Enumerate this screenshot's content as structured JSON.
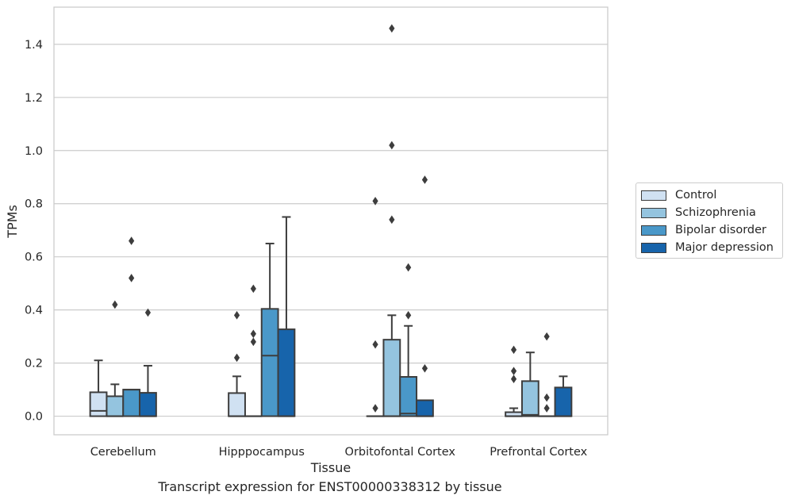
{
  "chart_data": {
    "type": "box",
    "caption": "Transcript expression for ENST00000338312 by tissue",
    "xlabel": "Tissue",
    "ylabel": "TPMs",
    "ylim": [
      -0.07,
      1.54
    ],
    "yticks": [
      0.0,
      0.2,
      0.4,
      0.6,
      0.8,
      1.0,
      1.2,
      1.4
    ],
    "ytick_labels": [
      "0.0",
      "0.2",
      "0.4",
      "0.6",
      "0.8",
      "1.0",
      "1.2",
      "1.4"
    ],
    "grid": "horizontal",
    "legend_position": "right",
    "categories": [
      "Cerebellum",
      "Hipppocampus",
      "Orbitofontal Cortex",
      "Prefrontal Cortex"
    ],
    "series": [
      {
        "name": "Control",
        "color": "#d0e1f2",
        "boxes": [
          {
            "q1": 0.0,
            "median": 0.02,
            "q3": 0.09,
            "whisker_low": 0.0,
            "whisker_high": 0.21,
            "outliers": []
          },
          {
            "q1": 0.0,
            "median": 0.0,
            "q3": 0.087,
            "whisker_low": 0.0,
            "whisker_high": 0.15,
            "outliers": [
              0.22,
              0.38
            ]
          },
          {
            "q1": 0.0,
            "median": 0.0,
            "q3": 0.0,
            "whisker_low": 0.0,
            "whisker_high": 0.0,
            "outliers": [
              0.03,
              0.27,
              0.81
            ]
          },
          {
            "q1": 0.0,
            "median": 0.0,
            "q3": 0.015,
            "whisker_low": 0.0,
            "whisker_high": 0.03,
            "outliers": [
              0.14,
              0.17,
              0.25
            ]
          }
        ]
      },
      {
        "name": "Schizophrenia",
        "color": "#94c4df",
        "boxes": [
          {
            "q1": 0.0,
            "median": 0.0,
            "q3": 0.075,
            "whisker_low": 0.0,
            "whisker_high": 0.12,
            "outliers": [
              0.42
            ]
          },
          {
            "q1": 0.0,
            "median": 0.0,
            "q3": 0.0,
            "whisker_low": 0.0,
            "whisker_high": 0.0,
            "outliers": [
              0.28,
              0.31,
              0.48
            ]
          },
          {
            "q1": 0.0,
            "median": 0.0,
            "q3": 0.288,
            "whisker_low": 0.0,
            "whisker_high": 0.38,
            "outliers": [
              0.74,
              1.02,
              1.46
            ]
          },
          {
            "q1": 0.0,
            "median": 0.005,
            "q3": 0.132,
            "whisker_low": 0.0,
            "whisker_high": 0.24,
            "outliers": []
          }
        ]
      },
      {
        "name": "Bipolar disorder",
        "color": "#4a98c9",
        "boxes": [
          {
            "q1": 0.0,
            "median": 0.1,
            "q3": 0.1,
            "whisker_low": 0.0,
            "whisker_high": 0.1,
            "outliers": [
              0.52,
              0.66
            ]
          },
          {
            "q1": 0.0,
            "median": 0.228,
            "q3": 0.404,
            "whisker_low": 0.0,
            "whisker_high": 0.65,
            "outliers": []
          },
          {
            "q1": 0.0,
            "median": 0.01,
            "q3": 0.148,
            "whisker_low": 0.0,
            "whisker_high": 0.34,
            "outliers": [
              0.38,
              0.56
            ]
          },
          {
            "q1": 0.0,
            "median": 0.0,
            "q3": 0.0,
            "whisker_low": 0.0,
            "whisker_high": 0.0,
            "outliers": [
              0.03,
              0.07,
              0.3
            ]
          }
        ]
      },
      {
        "name": "Major depression",
        "color": "#1764ab",
        "boxes": [
          {
            "q1": 0.0,
            "median": 0.0,
            "q3": 0.088,
            "whisker_low": 0.0,
            "whisker_high": 0.19,
            "outliers": [
              0.39
            ]
          },
          {
            "q1": 0.0,
            "median": 0.0,
            "q3": 0.327,
            "whisker_low": 0.0,
            "whisker_high": 0.75,
            "outliers": []
          },
          {
            "q1": 0.0,
            "median": 0.0,
            "q3": 0.06,
            "whisker_low": 0.0,
            "whisker_high": 0.06,
            "outliers": [
              0.18,
              0.89
            ]
          },
          {
            "q1": 0.0,
            "median": 0.0,
            "q3": 0.108,
            "whisker_low": 0.0,
            "whisker_high": 0.15,
            "outliers": []
          }
        ]
      }
    ]
  }
}
